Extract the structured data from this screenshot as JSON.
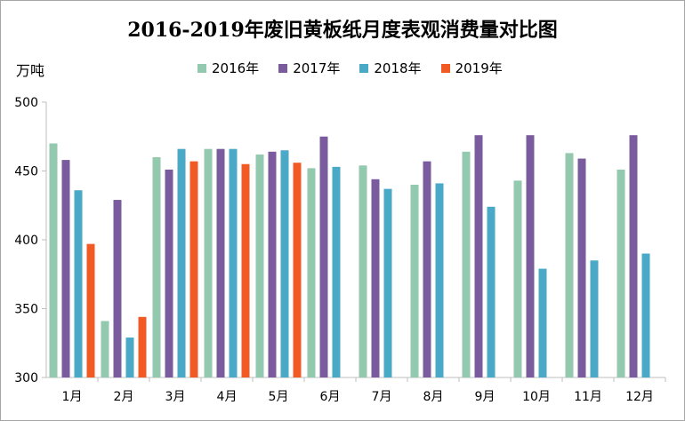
{
  "chart_data": {
    "type": "bar",
    "title": "2016-2019年废旧黄板纸月度表观消费量对比图",
    "ylabel": "万吨",
    "xlabel": "",
    "ylim": [
      300,
      500
    ],
    "yticks": [
      300,
      350,
      400,
      450,
      500
    ],
    "grid": false,
    "legend_position": "top",
    "categories": [
      "1月",
      "2月",
      "3月",
      "4月",
      "5月",
      "6月",
      "7月",
      "8月",
      "9月",
      "10月",
      "11月",
      "12月"
    ],
    "series": [
      {
        "name": "2016年",
        "color": "#93c9ae",
        "values": [
          470,
          341,
          460,
          466,
          462,
          452,
          454,
          440,
          464,
          443,
          463,
          451
        ]
      },
      {
        "name": "2017年",
        "color": "#7a5c9e",
        "values": [
          458,
          429,
          451,
          466,
          464,
          475,
          444,
          457,
          476,
          476,
          459,
          476
        ]
      },
      {
        "name": "2018年",
        "color": "#4aa9c6",
        "values": [
          436,
          329,
          466,
          466,
          465,
          453,
          437,
          441,
          424,
          379,
          385,
          390
        ]
      },
      {
        "name": "2019年",
        "color": "#f15a24",
        "values": [
          397,
          344,
          457,
          455,
          456,
          null,
          null,
          null,
          null,
          null,
          null,
          null
        ]
      }
    ]
  }
}
